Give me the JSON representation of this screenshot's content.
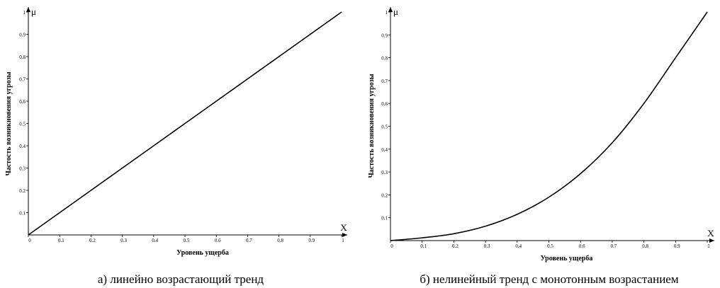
{
  "chart_data": [
    {
      "type": "line",
      "x": [
        0,
        0.1,
        0.2,
        0.3,
        0.4,
        0.5,
        0.6,
        0.7,
        0.8,
        0.9,
        1
      ],
      "series": [
        {
          "values": [
            0,
            0.1,
            0.2,
            0.3,
            0.4,
            0.5,
            0.6,
            0.7,
            0.8,
            0.9,
            1
          ]
        }
      ],
      "xticks": [
        "0",
        "0.1",
        "0.2",
        "0.3",
        "0.4",
        "0.5",
        "0.6",
        "0.7",
        "0.8",
        "0.9",
        "1"
      ],
      "yticks": [
        "0.1",
        "0.2",
        "0.3",
        "0.4",
        "0.5",
        "0.6",
        "0.7",
        "0.8",
        "0.9",
        "1"
      ],
      "xlabel": "Уровень ущерба",
      "ylabel": "Частость возникновения угрозы",
      "x_axis_letter": "X",
      "y_axis_letter": "μ",
      "caption": "а) линейно возрастающий тренд",
      "xlim": [
        0,
        1
      ],
      "ylim": [
        0,
        1
      ],
      "grid": false
    },
    {
      "type": "line",
      "x": [
        0,
        0.1,
        0.2,
        0.3,
        0.4,
        0.5,
        0.6,
        0.7,
        0.8,
        0.9,
        1
      ],
      "series": [
        {
          "values": [
            0,
            0.012,
            0.03,
            0.063,
            0.115,
            0.19,
            0.293,
            0.428,
            0.6,
            0.8,
            1
          ]
        }
      ],
      "xticks": [
        "0",
        "0.1",
        "0.2",
        "0.3",
        "0.4",
        "0.5",
        "0.6",
        "0.7",
        "0.8",
        "0.9",
        "1"
      ],
      "yticks": [
        "0.1",
        "0.2",
        "0.3",
        "0.4",
        "0.5",
        "0.6",
        "0.7",
        "0.8",
        "0.9",
        "1"
      ],
      "xlabel": "Уровень ущерба",
      "ylabel": "Частость возникновения угрозы",
      "x_axis_letter": "X",
      "y_axis_letter": "μ",
      "caption": "б) нелинейный тренд с монотонным возрастанием",
      "xlim": [
        0,
        1
      ],
      "ylim": [
        0,
        1
      ],
      "grid": false
    }
  ]
}
